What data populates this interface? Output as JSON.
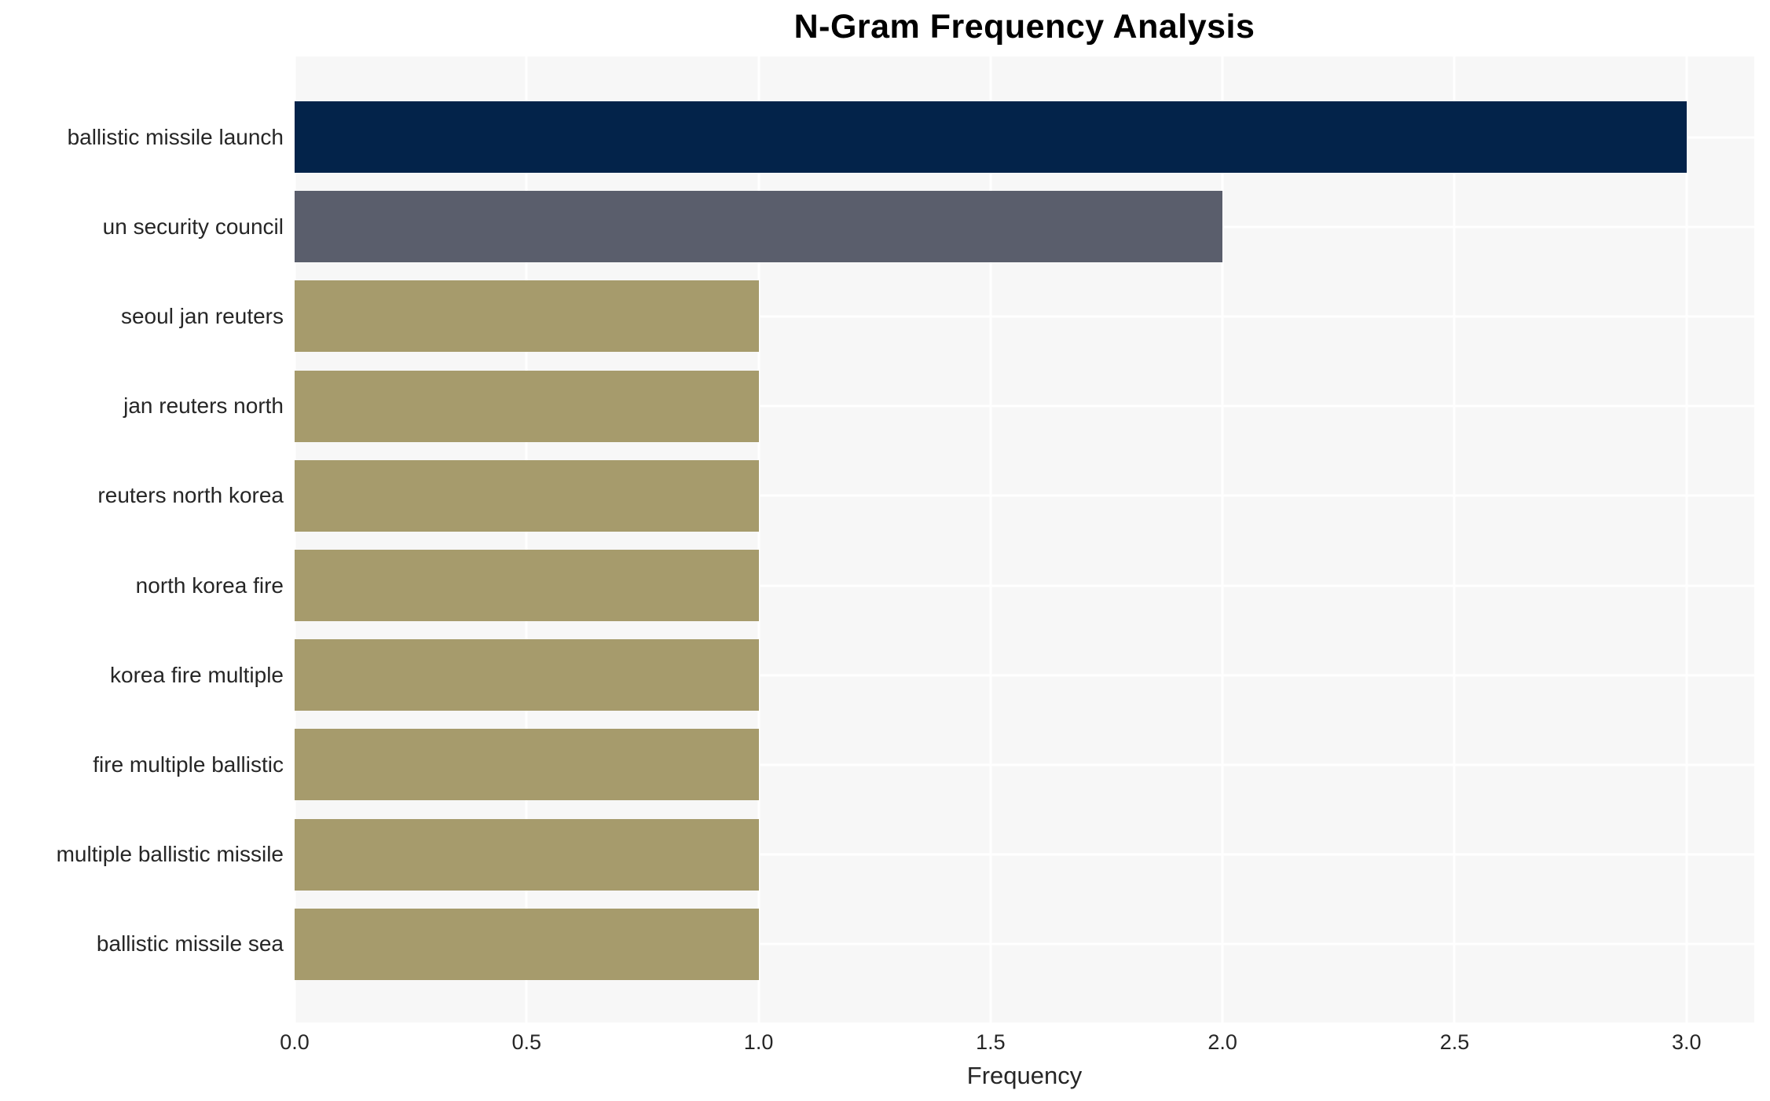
{
  "title": "N-Gram Frequency Analysis",
  "chart_data": {
    "type": "bar",
    "orientation": "horizontal",
    "title": "N-Gram Frequency Analysis",
    "categories": [
      "ballistic missile launch",
      "un security council",
      "seoul jan reuters",
      "jan reuters north",
      "reuters north korea",
      "north korea fire",
      "korea fire multiple",
      "fire multiple ballistic",
      "multiple ballistic missile",
      "ballistic missile sea"
    ],
    "values": [
      3,
      2,
      1,
      1,
      1,
      1,
      1,
      1,
      1,
      1
    ],
    "bar_colors": [
      "#03234a",
      "#5a5e6c",
      "#a69b6c",
      "#a69b6c",
      "#a69b6c",
      "#a69b6c",
      "#a69b6c",
      "#a69b6c",
      "#a69b6c",
      "#a69b6c"
    ],
    "xlabel": "Frequency",
    "ylabel": "",
    "xlim": [
      0,
      3.146
    ],
    "xticks": [
      0.0,
      0.5,
      1.0,
      1.5,
      2.0,
      2.5,
      3.0
    ],
    "xtick_labels": [
      "0.0",
      "0.5",
      "1.0",
      "1.5",
      "2.0",
      "2.5",
      "3.0"
    ],
    "grid": true,
    "legend": false,
    "colors": {
      "plot_background": "#f7f7f7",
      "grid_line": "#ffffff",
      "tick_text": "#262626",
      "title_text": "#000000",
      "figure_background": "#ffffff"
    }
  }
}
